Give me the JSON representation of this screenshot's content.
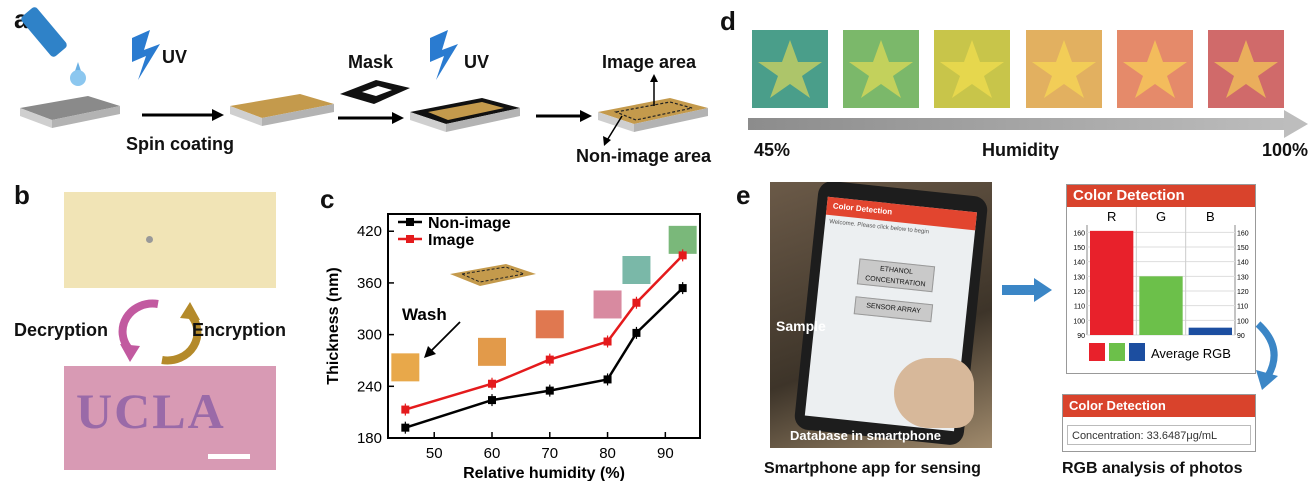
{
  "panel_a": {
    "label": "a",
    "uv1": "UV",
    "spin_coating": "Spin coating",
    "mask": "Mask",
    "uv2": "UV",
    "image_area": "Image area",
    "non_image_area": "Non-image area"
  },
  "panel_b": {
    "label": "b",
    "decryption": "Decryption",
    "encryption": "Encryption",
    "ucla": "UCLA"
  },
  "panel_c": {
    "label": "c",
    "wash": "Wash"
  },
  "panel_d": {
    "label": "d",
    "start": "45%",
    "middle": "Humidity",
    "end": "100%",
    "swatches": [
      "#4a9e8a",
      "#7bb86a",
      "#c8c54a",
      "#e2b060",
      "#e58a6a",
      "#d06a6a"
    ]
  },
  "panel_e": {
    "label": "e",
    "phone_header": "Color Detection",
    "phone_welcome": "Welcome. Please click below to begin",
    "btn_ethanol_1": "ETHANOL",
    "btn_ethanol_2": "CONCENTRATION",
    "btn_sensor": "SENSOR ARRAY",
    "sample": "Sample",
    "database": "Database in smartphone",
    "caption_left": "Smartphone app for sensing",
    "card1_title": "Color Detection",
    "rgb_r": "R",
    "rgb_g": "G",
    "rgb_b": "B",
    "average_rgb": "Average RGB",
    "card2_title": "Color Detection",
    "concentration": "Concentration: 33.6487μg/mL",
    "caption_right": "RGB analysis of photos"
  },
  "chart_data": [
    {
      "type": "line",
      "xlabel": "Relative humidity (%)",
      "ylabel": "Thickness (nm)",
      "xlim": [
        42,
        96
      ],
      "ylim": [
        180,
        440
      ],
      "xticks": [
        50,
        60,
        70,
        80,
        90
      ],
      "yticks": [
        180,
        240,
        300,
        360,
        420
      ],
      "legend": "top-left",
      "series": [
        {
          "name": "Non-image",
          "color": "#000000",
          "x": [
            45,
            60,
            70,
            80,
            85,
            93
          ],
          "y": [
            192,
            224,
            235,
            248,
            302,
            354
          ]
        },
        {
          "name": "Image",
          "color": "#e41a1c",
          "x": [
            45,
            60,
            70,
            80,
            85,
            93
          ],
          "y": [
            213,
            243,
            271,
            292,
            337,
            392
          ]
        }
      ]
    },
    {
      "type": "bar",
      "title": "Color Detection",
      "categories": [
        "R",
        "G",
        "B"
      ],
      "values": [
        161,
        130,
        95
      ],
      "colors": [
        "#e8212b",
        "#6cc04a",
        "#1c4ea0"
      ],
      "ylim": [
        90,
        165
      ],
      "yticks": [
        90,
        100,
        110,
        120,
        130,
        140,
        150,
        160
      ],
      "legend": "bottom"
    }
  ]
}
